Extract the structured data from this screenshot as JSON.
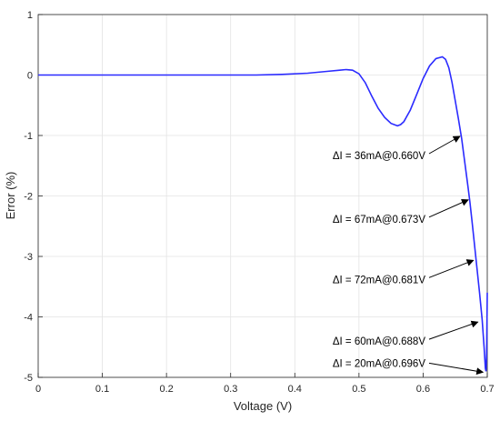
{
  "chart_data": {
    "type": "line",
    "xlabel": "Voltage (V)",
    "ylabel": "Error (%)",
    "xlim": [
      0,
      0.7
    ],
    "ylim": [
      -5,
      1
    ],
    "grid": true,
    "xticks": [
      0,
      0.1,
      0.2,
      0.3,
      0.4,
      0.5,
      0.6,
      0.7
    ],
    "xtick_labels": [
      "0",
      "0.1",
      "0.2",
      "0.3",
      "0.4",
      "0.5",
      "0.6",
      "0.7"
    ],
    "yticks": [
      1,
      0,
      -1,
      -2,
      -3,
      -4,
      -5
    ],
    "ytick_labels": [
      "1",
      "0",
      "-1",
      "-2",
      "-3",
      "-4",
      "-5"
    ],
    "line_color": "#2b2bff",
    "series": [
      {
        "x": [
          0,
          0.1,
          0.2,
          0.3,
          0.34,
          0.38,
          0.42,
          0.45,
          0.47,
          0.48,
          0.49,
          0.5,
          0.51,
          0.52,
          0.53,
          0.54,
          0.55,
          0.56,
          0.565,
          0.57,
          0.58,
          0.59,
          0.6,
          0.61,
          0.62,
          0.63,
          0.635,
          0.64,
          0.645,
          0.65,
          0.655,
          0.66,
          0.665,
          0.67,
          0.673,
          0.676,
          0.68,
          0.684,
          0.688,
          0.692,
          0.695,
          0.697,
          0.698,
          0.699,
          0.7
        ],
        "y": [
          0,
          0,
          0,
          0,
          0.0,
          0.01,
          0.03,
          0.06,
          0.08,
          0.09,
          0.08,
          0.02,
          -0.13,
          -0.35,
          -0.55,
          -0.7,
          -0.8,
          -0.84,
          -0.82,
          -0.77,
          -0.58,
          -0.32,
          -0.06,
          0.15,
          0.27,
          0.3,
          0.26,
          0.12,
          -0.12,
          -0.42,
          -0.72,
          -1.05,
          -1.45,
          -1.85,
          -2.1,
          -2.4,
          -2.8,
          -3.2,
          -3.6,
          -4.05,
          -4.5,
          -4.85,
          -4.9,
          -4.6,
          -3.6
        ]
      }
    ],
    "annotations": [
      {
        "text": "ΔI = 36mA@0.660V",
        "x": 0.66,
        "y": -1.0
      },
      {
        "text": "ΔI = 67mA@0.673V",
        "x": 0.673,
        "y": -2.05
      },
      {
        "text": "ΔI = 72mA@0.681V",
        "x": 0.681,
        "y": -3.05
      },
      {
        "text": "ΔI = 60mA@0.688V",
        "x": 0.688,
        "y": -4.07
      },
      {
        "text": "ΔI = 20mA@0.696V",
        "x": 0.696,
        "y": -4.9
      }
    ]
  }
}
